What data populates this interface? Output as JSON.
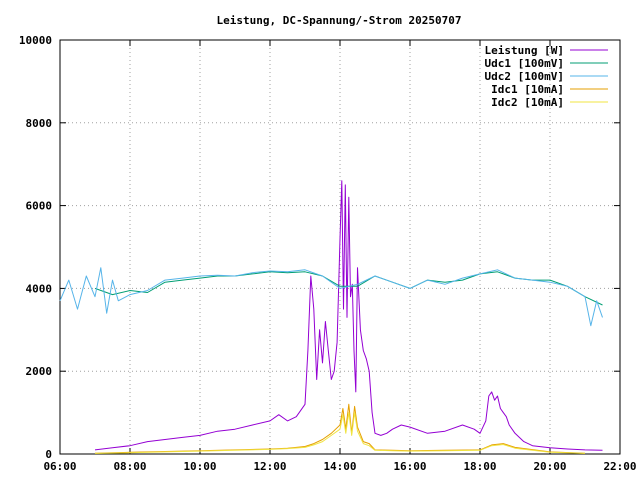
{
  "chart_data": {
    "type": "line",
    "title": "Leistung, DC-Spannung/-Strom 20250707",
    "xlabel": "",
    "ylabel": "",
    "xlim": [
      "06:00",
      "22:00"
    ],
    "ylim": [
      0,
      10000
    ],
    "grid": true,
    "legend_position": "top-right",
    "x_ticks": [
      "06:00",
      "08:00",
      "10:00",
      "12:00",
      "14:00",
      "16:00",
      "18:00",
      "20:00",
      "22:00"
    ],
    "y_ticks": [
      0,
      2000,
      4000,
      6000,
      8000,
      10000
    ],
    "series": [
      {
        "name": "Leistung [W]",
        "color": "#9400d3",
        "x": [
          "07:00",
          "07:30",
          "08:00",
          "08:30",
          "09:00",
          "09:30",
          "10:00",
          "10:30",
          "11:00",
          "11:30",
          "12:00",
          "12:15",
          "12:30",
          "12:45",
          "13:00",
          "13:05",
          "13:10",
          "13:15",
          "13:20",
          "13:25",
          "13:30",
          "13:35",
          "13:40",
          "13:45",
          "13:50",
          "13:55",
          "14:00",
          "14:03",
          "14:06",
          "14:09",
          "14:12",
          "14:15",
          "14:18",
          "14:21",
          "14:24",
          "14:27",
          "14:30",
          "14:35",
          "14:40",
          "14:45",
          "14:50",
          "14:55",
          "15:00",
          "15:10",
          "15:20",
          "15:30",
          "15:45",
          "16:00",
          "16:30",
          "17:00",
          "17:30",
          "17:50",
          "18:00",
          "18:10",
          "18:15",
          "18:20",
          "18:25",
          "18:30",
          "18:35",
          "18:40",
          "18:45",
          "18:50",
          "19:00",
          "19:15",
          "19:30",
          "20:00",
          "20:30",
          "21:00",
          "21:30"
        ],
        "y": [
          100,
          150,
          200,
          300,
          350,
          400,
          450,
          550,
          600,
          700,
          800,
          950,
          800,
          900,
          1200,
          2500,
          4300,
          3500,
          1800,
          3000,
          2200,
          3200,
          2500,
          1800,
          2000,
          2700,
          5200,
          6600,
          3500,
          6500,
          3300,
          6200,
          3800,
          4100,
          2500,
          1500,
          4500,
          3000,
          2500,
          2300,
          2000,
          1000,
          500,
          450,
          500,
          600,
          700,
          650,
          500,
          550,
          700,
          600,
          500,
          800,
          1400,
          1500,
          1300,
          1400,
          1100,
          1000,
          900,
          700,
          500,
          300,
          200,
          150,
          120,
          100,
          90
        ]
      },
      {
        "name": "Udc1 [100mV]",
        "color": "#009e73",
        "x": [
          "07:00",
          "07:30",
          "08:00",
          "08:30",
          "09:00",
          "09:30",
          "10:00",
          "10:30",
          "11:00",
          "11:30",
          "12:00",
          "12:30",
          "13:00",
          "13:30",
          "14:00",
          "14:30",
          "15:00",
          "15:30",
          "16:00",
          "16:30",
          "17:00",
          "17:30",
          "18:00",
          "18:30",
          "19:00",
          "19:30",
          "20:00",
          "20:30",
          "21:00",
          "21:30"
        ],
        "y": [
          4000,
          3850,
          3950,
          3900,
          4150,
          4200,
          4250,
          4300,
          4300,
          4350,
          4400,
          4380,
          4400,
          4300,
          4050,
          4050,
          4300,
          4150,
          4000,
          4200,
          4150,
          4200,
          4350,
          4400,
          4250,
          4200,
          4200,
          4050,
          3800,
          3600
        ]
      },
      {
        "name": "Udc2 [100mV]",
        "color": "#56b4e9",
        "x": [
          "06:00",
          "06:15",
          "06:30",
          "06:45",
          "07:00",
          "07:10",
          "07:20",
          "07:30",
          "07:40",
          "08:00",
          "08:30",
          "09:00",
          "09:30",
          "10:00",
          "10:30",
          "11:00",
          "11:30",
          "12:00",
          "12:30",
          "13:00",
          "13:30",
          "14:00",
          "14:30",
          "15:00",
          "15:30",
          "16:00",
          "16:30",
          "17:00",
          "17:30",
          "18:00",
          "18:30",
          "19:00",
          "19:30",
          "20:00",
          "20:30",
          "21:00",
          "21:10",
          "21:20",
          "21:30"
        ],
        "y": [
          3700,
          4200,
          3500,
          4300,
          3800,
          4500,
          3400,
          4200,
          3700,
          3850,
          3950,
          4200,
          4250,
          4300,
          4320,
          4300,
          4380,
          4420,
          4400,
          4450,
          4300,
          4000,
          4100,
          4300,
          4150,
          4000,
          4200,
          4100,
          4250,
          4350,
          4450,
          4250,
          4200,
          4150,
          4050,
          3800,
          3100,
          3700,
          3300
        ]
      },
      {
        "name": "Idc1 [10mA]",
        "color": "#e69f00",
        "x": [
          "07:00",
          "08:00",
          "09:00",
          "10:00",
          "11:00",
          "12:00",
          "12:30",
          "13:00",
          "13:15",
          "13:30",
          "13:45",
          "14:00",
          "14:05",
          "14:10",
          "14:15",
          "14:20",
          "14:25",
          "14:30",
          "14:40",
          "14:50",
          "15:00",
          "15:30",
          "16:00",
          "17:00",
          "18:00",
          "18:20",
          "18:40",
          "19:00",
          "20:00",
          "21:00"
        ],
        "y": [
          20,
          40,
          60,
          80,
          100,
          120,
          140,
          180,
          250,
          350,
          500,
          700,
          1100,
          600,
          1200,
          500,
          1150,
          650,
          300,
          250,
          100,
          90,
          80,
          90,
          100,
          220,
          250,
          160,
          50,
          20
        ]
      },
      {
        "name": "Idc2 [10mA]",
        "color": "#f0e442",
        "x": [
          "07:00",
          "08:00",
          "09:00",
          "10:00",
          "11:00",
          "12:00",
          "12:30",
          "13:00",
          "13:15",
          "13:30",
          "13:45",
          "14:00",
          "14:05",
          "14:10",
          "14:15",
          "14:20",
          "14:25",
          "14:30",
          "14:40",
          "14:50",
          "15:00",
          "15:30",
          "16:00",
          "17:00",
          "18:00",
          "18:20",
          "18:40",
          "19:00",
          "20:00",
          "21:00"
        ],
        "y": [
          15,
          30,
          50,
          70,
          90,
          110,
          130,
          160,
          220,
          300,
          450,
          600,
          950,
          500,
          1000,
          450,
          1000,
          550,
          250,
          200,
          90,
          80,
          70,
          80,
          90,
          200,
          230,
          140,
          40,
          15
        ]
      }
    ]
  }
}
